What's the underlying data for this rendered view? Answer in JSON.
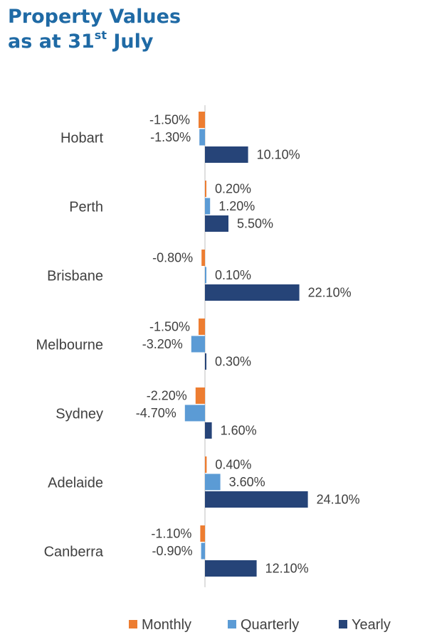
{
  "title": {
    "line1": "Property Values",
    "line2_prefix": "as at 31",
    "line2_sup": "st",
    "line2_suffix": " July"
  },
  "colors": {
    "title": "#1f6aa5",
    "monthly": "#ed7d31",
    "quarterly": "#5b9bd5",
    "yearly": "#264478",
    "text": "#404040",
    "axis": "#bfbfbf"
  },
  "chart_data": {
    "type": "bar",
    "orientation": "horizontal",
    "categories": [
      "Hobart",
      "Perth",
      "Brisbane",
      "Melbourne",
      "Sydney",
      "Adelaide",
      "Canberra"
    ],
    "series": [
      {
        "name": "Monthly",
        "values": [
          -1.5,
          0.2,
          -0.8,
          -1.5,
          -2.2,
          0.4,
          -1.1
        ],
        "labels": [
          "-1.50%",
          "0.20%",
          "-0.80%",
          "-1.50%",
          "-2.20%",
          "0.40%",
          "-1.10%"
        ]
      },
      {
        "name": "Quarterly",
        "values": [
          -1.3,
          1.2,
          0.1,
          -3.2,
          -4.7,
          3.6,
          -0.9
        ],
        "labels": [
          "-1.30%",
          "1.20%",
          "0.10%",
          "-3.20%",
          "-4.70%",
          "3.60%",
          "-0.90%"
        ]
      },
      {
        "name": "Yearly",
        "values": [
          10.1,
          5.5,
          22.1,
          0.3,
          1.6,
          24.1,
          12.1
        ],
        "labels": [
          "10.10%",
          "5.50%",
          "22.10%",
          "0.30%",
          "1.60%",
          "24.10%",
          "12.10%"
        ]
      }
    ],
    "legend_position": "bottom",
    "grid": false
  }
}
